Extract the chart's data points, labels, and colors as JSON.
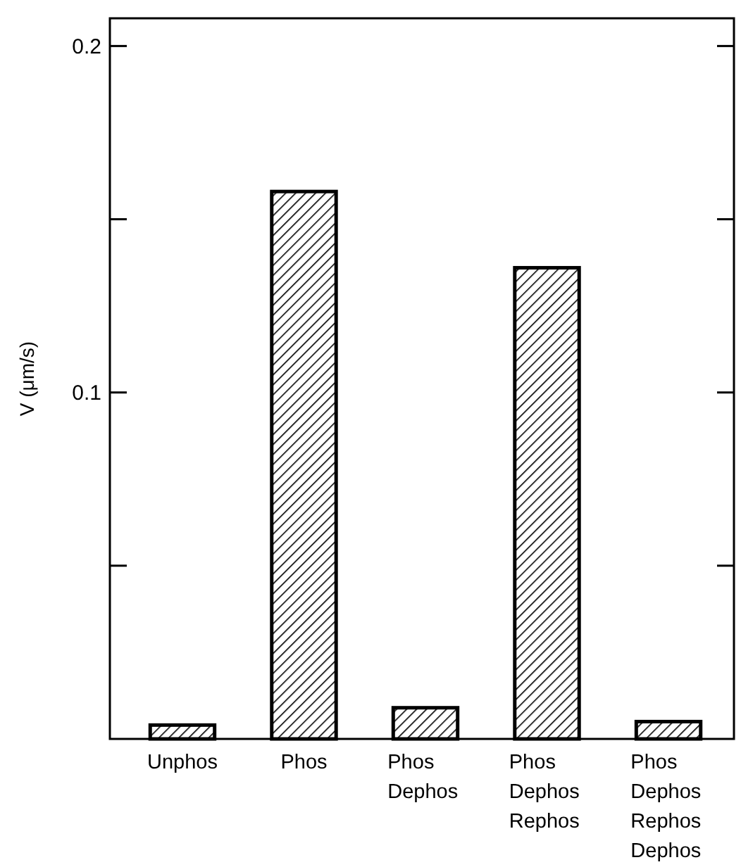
{
  "chart_data": {
    "type": "bar",
    "ylabel": "V (μm/s)",
    "categories": [
      "Unphos",
      "Phos",
      "Phos Dephos",
      "Phos Dephos Rephos",
      "Phos Dephos Rephos Dephos"
    ],
    "values": [
      0.004,
      0.158,
      0.009,
      0.136,
      0.005
    ],
    "color": "#000000",
    "ylim": [
      0,
      0.208
    ],
    "yticks": [
      {
        "value": 0.05,
        "label": null
      },
      0.1,
      {
        "value": 0.15,
        "label": null
      },
      0.2
    ],
    "grid": false
  }
}
